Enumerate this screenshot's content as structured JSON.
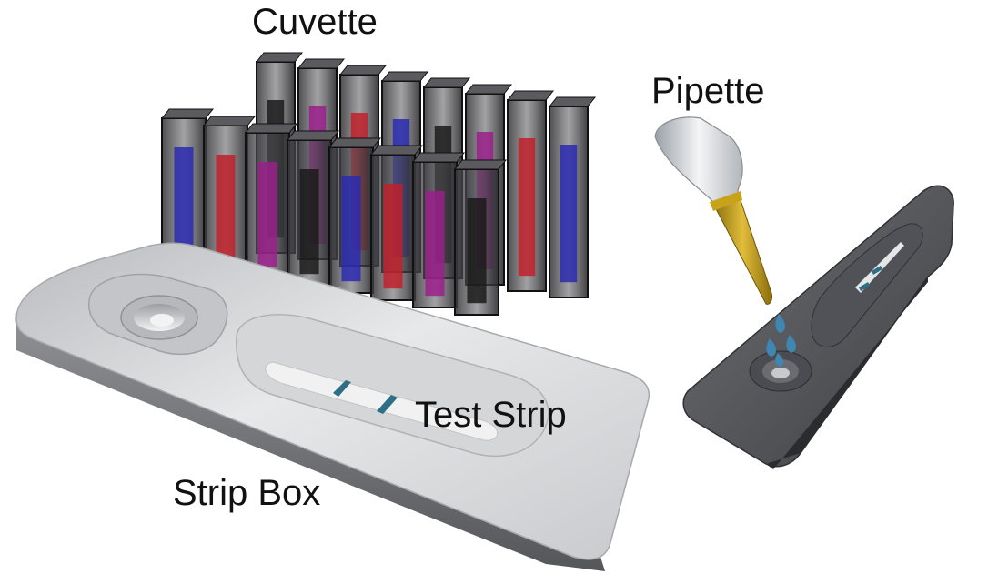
{
  "labels": {
    "cuvette": "Cuvette",
    "pipette": "Pipette",
    "test_strip": "Test Strip",
    "strip_box": "Strip Box"
  },
  "cuvettes": {
    "back_row": [
      "#1a1a1a",
      "#9a1e8a",
      "#c0202a",
      "#2a2ab0",
      "#1a1a1a",
      "#9a1e8a",
      "#c0202a",
      "#2a2ab0"
    ],
    "front_row": [
      "#2a2ab0",
      "#c0202a",
      "#9a1e8a",
      "#1a1a1a",
      "#2a2ab0",
      "#c0202a",
      "#9a1e8a",
      "#1a1a1a"
    ]
  },
  "colors": {
    "strip_box_body": "#d9dadc",
    "strip_box_dark": "#5f6064",
    "test_line": "#2f6f86",
    "pipette_tip": "#c9a21c",
    "drop": "#3f86b3"
  }
}
